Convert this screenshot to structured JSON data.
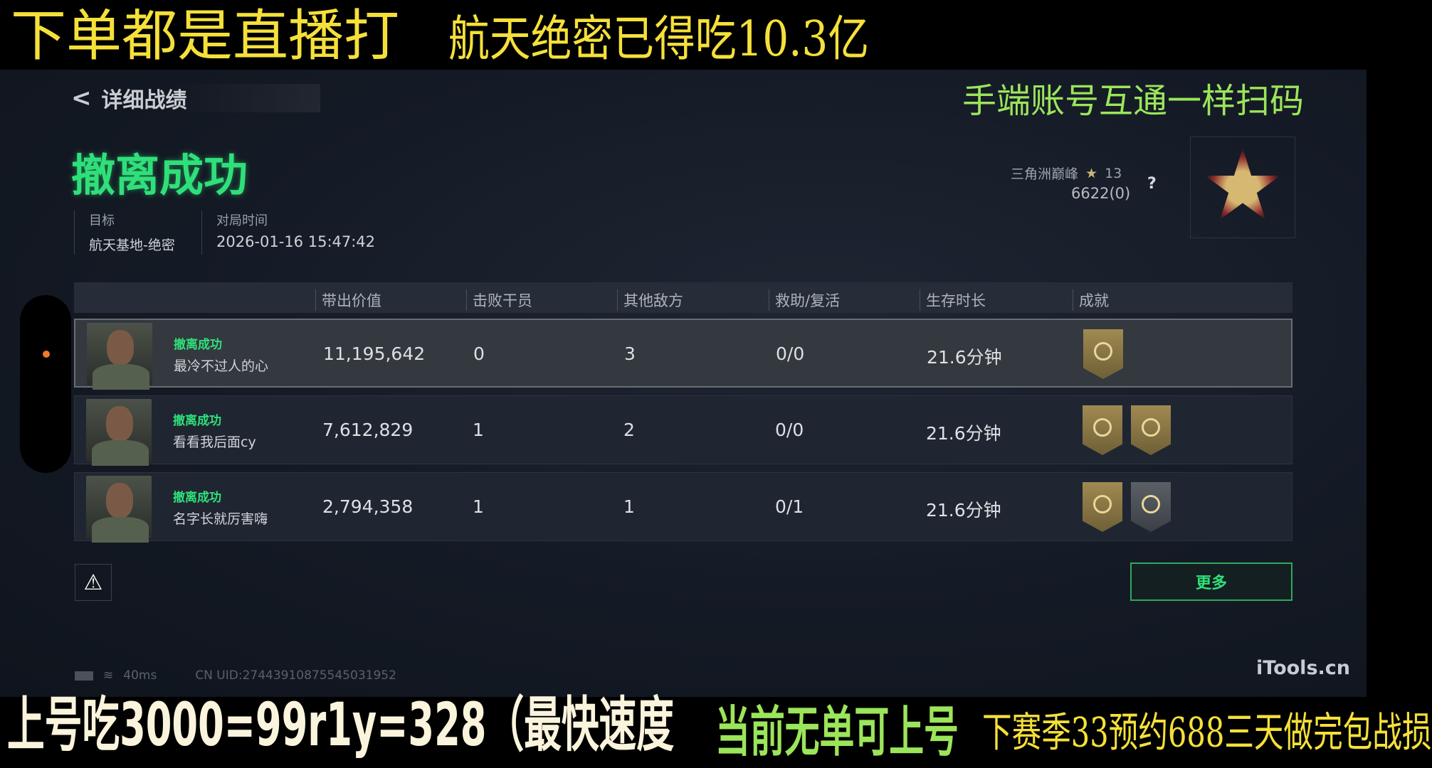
{
  "overlays": {
    "top_title": "航天绝密已得吃10.3亿",
    "left_note": "下单都是直播打",
    "right_note": "手端账号互通一样扫码",
    "bottom_left": "上号吃3000=99r1y=328（最快速度",
    "bottom_mid": "当前无单可上号",
    "bottom_right": "下赛季33预约688三天做完包战损"
  },
  "header": {
    "back_label": "详细战绩",
    "result": "撤离成功"
  },
  "info": {
    "target_label": "目标",
    "target_value": "航天基地-绝密",
    "time_label": "对局时间",
    "time_value": "2026-01-16 15:47:42"
  },
  "profile": {
    "rank_name": "三角洲巅峰",
    "stars": "13",
    "score": "6622(0)",
    "help": "?"
  },
  "table": {
    "columns": [
      "带出价值",
      "击败干员",
      "其他敌方",
      "救助/复活",
      "生存时长",
      "成就"
    ],
    "rows": [
      {
        "status": "撤离成功",
        "name": "最冷不过人的心",
        "value": "11,195,642",
        "kills": "0",
        "others": "3",
        "assist": "0/0",
        "time": "21.6分钟",
        "medals": [
          "gold",
          "none"
        ]
      },
      {
        "status": "撤离成功",
        "name": "看看我后面cy",
        "value": "7,612,829",
        "kills": "1",
        "others": "2",
        "assist": "0/0",
        "time": "21.6分钟",
        "medals": [
          "gold",
          "gold"
        ]
      },
      {
        "status": "撤离成功",
        "name": "名字长就厉害嗨",
        "value": "2,794,358",
        "kills": "1",
        "others": "1",
        "assist": "0/1",
        "time": "21.6分钟",
        "medals": [
          "gold",
          "grey"
        ]
      }
    ]
  },
  "footer": {
    "more_label": "更多",
    "ping": "40ms",
    "uid": "CN UID:27443910875545031952",
    "watermark": "iTools.cn"
  },
  "colors": {
    "accent_green": "#2fe07a",
    "overlay_yellow": "#f5e03a",
    "overlay_green": "#9be55a"
  }
}
